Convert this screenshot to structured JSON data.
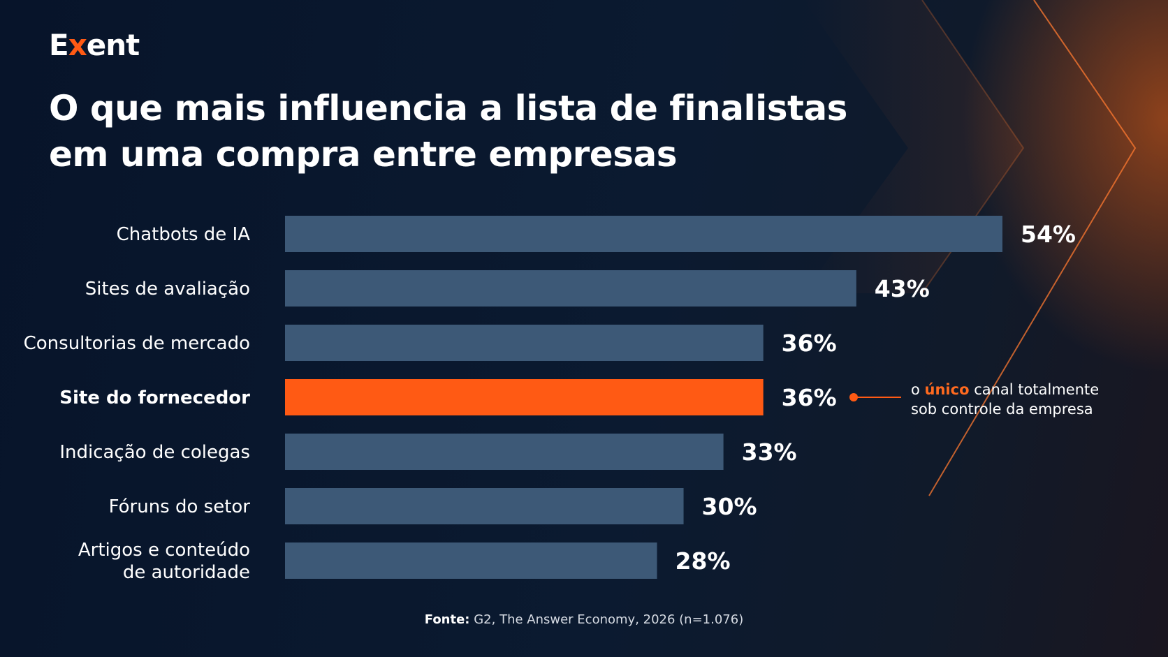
{
  "brand": {
    "logo_prefix": "E",
    "logo_x": "x",
    "logo_suffix": "ent"
  },
  "colors": {
    "bar": "#3d5977",
    "highlight": "#ff5a14",
    "background": "#0b1628"
  },
  "title_lines": [
    "O que mais influencia a lista de finalistas",
    "em uma compra entre empresas"
  ],
  "chart_data": {
    "type": "bar",
    "orientation": "horizontal",
    "title": "O que mais influencia a lista de finalistas em uma compra entre empresas",
    "categories": [
      "Chatbots de IA",
      "Sites de avaliação",
      "Consultorias de mercado",
      "Site do fornecedor",
      "Indicação de colegas",
      "Fóruns do setor",
      "Artigos e conteúdo de autoridade"
    ],
    "category_lines": [
      [
        "Chatbots de IA"
      ],
      [
        "Sites de avaliação"
      ],
      [
        "Consultorias de mercado"
      ],
      [
        "Site do fornecedor"
      ],
      [
        "Indicação de colegas"
      ],
      [
        "Fóruns do setor"
      ],
      [
        "Artigos e conteúdo",
        "de autoridade"
      ]
    ],
    "values": [
      54,
      43,
      36,
      36,
      33,
      30,
      28
    ],
    "value_labels": [
      "54%",
      "43%",
      "36%",
      "36%",
      "33%",
      "30%",
      "28%"
    ],
    "highlight_index": 3,
    "xlim": [
      0,
      54
    ],
    "grid": false,
    "legend": "none"
  },
  "annotation": {
    "pre": "o ",
    "emphasis": "único",
    "post": " canal totalmente",
    "line2": "sob controle da empresa"
  },
  "source": {
    "label": "Fonte:",
    "text": " G2, The Answer Economy, 2026 (n=1.076)"
  }
}
